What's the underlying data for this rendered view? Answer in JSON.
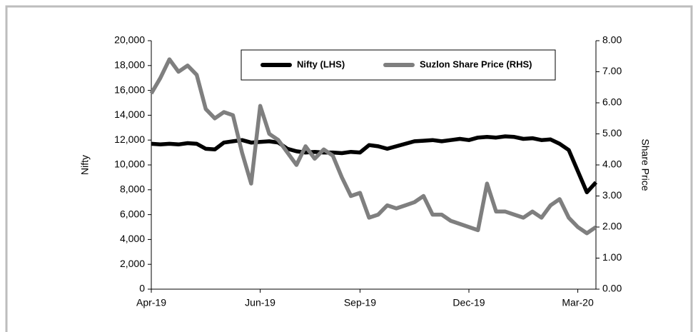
{
  "chart_data": {
    "type": "line",
    "categories": [
      "Apr-19",
      null,
      null,
      null,
      null,
      null,
      null,
      null,
      null,
      null,
      null,
      null,
      "Jun-19",
      null,
      null,
      null,
      null,
      null,
      null,
      null,
      null,
      null,
      null,
      "Sep-19",
      null,
      null,
      null,
      null,
      null,
      null,
      null,
      null,
      null,
      null,
      null,
      "Dec-19",
      null,
      null,
      null,
      null,
      null,
      null,
      null,
      null,
      null,
      null,
      null,
      "Mar-20",
      null,
      null
    ],
    "series": [
      {
        "name": "Nifty (LHS)",
        "color": "#000000",
        "axis": "y",
        "values": [
          11700,
          11650,
          11700,
          11650,
          11750,
          11700,
          11300,
          11250,
          11800,
          11900,
          12000,
          11800,
          11850,
          11900,
          11800,
          11300,
          11100,
          11000,
          11050,
          11000,
          11000,
          10950,
          11050,
          11000,
          11600,
          11500,
          11300,
          11500,
          11700,
          11900,
          11950,
          12000,
          11900,
          12000,
          12100,
          12000,
          12200,
          12250,
          12200,
          12300,
          12250,
          12100,
          12150,
          12000,
          12050,
          11700,
          11200,
          9500,
          7800,
          8600
        ]
      },
      {
        "name": "Suzlon Share Price (RHS)",
        "color": "#7f7f7f",
        "axis": "y2",
        "values": [
          6.3,
          6.8,
          7.4,
          7.0,
          7.2,
          6.9,
          5.8,
          5.5,
          5.7,
          5.6,
          4.4,
          3.4,
          5.9,
          5.0,
          4.8,
          4.4,
          4.0,
          4.6,
          4.2,
          4.5,
          4.3,
          3.6,
          3.0,
          3.1,
          2.3,
          2.4,
          2.7,
          2.6,
          2.7,
          2.8,
          3.0,
          2.4,
          2.4,
          2.2,
          2.1,
          2.0,
          1.9,
          3.4,
          2.5,
          2.5,
          2.4,
          2.3,
          2.5,
          2.3,
          2.7,
          2.9,
          2.3,
          2.0,
          1.8,
          2.0
        ]
      }
    ],
    "y_label": "Nifty",
    "y2_label": "Share  Price",
    "ylim": [
      0,
      20000
    ],
    "yticks": [
      0,
      {
        "value": 2000,
        "label": "2,000"
      },
      {
        "value": 4000,
        "label": "4,000"
      },
      {
        "value": 6000,
        "label": "6,000"
      },
      {
        "value": 8000,
        "label": "8,000"
      },
      {
        "value": 10000,
        "label": "10,000"
      },
      {
        "value": 12000,
        "label": "12,000"
      },
      {
        "value": 14000,
        "label": "14,000"
      },
      {
        "value": 16000,
        "label": "16,000"
      },
      {
        "value": 18000,
        "label": "18,000"
      },
      {
        "value": 20000,
        "label": "20,000"
      }
    ],
    "y2lim": [
      0,
      8
    ],
    "y2ticks": [
      {
        "value": 0,
        "label": "0.00"
      },
      {
        "value": 1,
        "label": "1.00"
      },
      {
        "value": 2,
        "label": "2.00"
      },
      {
        "value": 3,
        "label": "3.00"
      },
      {
        "value": 4,
        "label": "4.00"
      },
      {
        "value": 5,
        "label": "5.00"
      },
      {
        "value": 6,
        "label": "6.00"
      },
      {
        "value": 7,
        "label": "7.00"
      },
      {
        "value": 8,
        "label": "8.00"
      }
    ],
    "legend": "top"
  }
}
